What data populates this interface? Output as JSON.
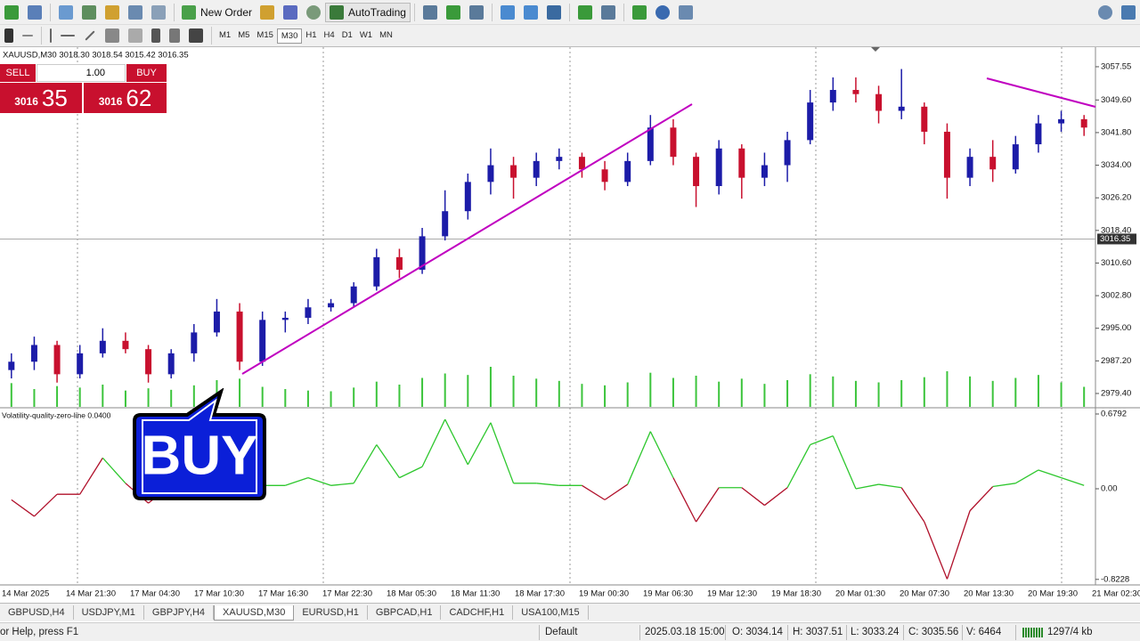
{
  "toolbar": {
    "new_order": "New Order",
    "auto_trading": "AutoTrading",
    "timeframes": [
      "M1",
      "M5",
      "M15",
      "M30",
      "H1",
      "H4",
      "D1",
      "W1",
      "MN"
    ]
  },
  "chart_header": "XAUUSD,M30  3018.30 3018.54 3015.42 3016.35",
  "trade_panel": {
    "sell": "SELL",
    "buy": "BUY",
    "lot": "1.00",
    "sell_big": "3016",
    "sell_small": "35",
    "buy_big": "3016",
    "buy_small": "62"
  },
  "overlay_text": "BUY",
  "chart_data": [
    {
      "type": "candlestick",
      "up_color": "#1c1ca8",
      "down_color": "#c8102e",
      "volume_color": "#3cc43c",
      "grid": false,
      "ylim": [
        2976.2,
        3061.8
      ],
      "yticks": [
        3057.55,
        {
          "value": 3049.6,
          "label": "3049.60"
        },
        {
          "value": 3041.8,
          "label": "3041.80"
        },
        {
          "value": 3034,
          "label": "3034.00"
        },
        {
          "value": 3026.2,
          "label": "3026.20"
        },
        {
          "value": 3018.4,
          "label": "3018.40"
        },
        {
          "value": 3010.6,
          "label": "3010.60"
        },
        {
          "value": 3002.8,
          "label": "3002.80"
        },
        {
          "value": 2995,
          "label": "2995.00"
        },
        {
          "value": 2987.2,
          "label": "2987.20"
        },
        {
          "value": 2979.4,
          "label": "2979.40"
        }
      ],
      "current_price": 3016.35,
      "open": [
        2985,
        2987,
        2991,
        2984,
        2989,
        2992,
        2990,
        2984,
        2989,
        2994,
        2999,
        2987,
        2997,
        2997.5,
        3000,
        3001,
        3005,
        3012,
        3009,
        3017,
        3023,
        3030,
        3034,
        3031,
        3035,
        3036,
        3033,
        3030,
        3035,
        3043,
        3036,
        3029,
        3038,
        3031,
        3034,
        3040,
        3049,
        3052,
        3051,
        3047,
        3048,
        3042,
        3031,
        3036,
        3033,
        3039,
        3044,
        3045
      ],
      "high": [
        2989,
        2993,
        2992,
        2991,
        2995,
        2994,
        2991,
        2990,
        2996,
        3002,
        3001,
        2999,
        2999,
        3002,
        3002,
        3006,
        3014,
        3014,
        3019,
        3028,
        3032,
        3038,
        3036,
        3037,
        3038,
        3037,
        3035,
        3037,
        3046,
        3045,
        3037,
        3040,
        3039,
        3037,
        3042,
        3052,
        3055,
        3055,
        3053,
        3057,
        3049,
        3044,
        3038,
        3040,
        3041,
        3046,
        3047,
        3046
      ],
      "low": [
        2983,
        2985,
        2982,
        2983,
        2988,
        2989,
        2982,
        2983,
        2987,
        2993,
        2985,
        2986,
        2994,
        2996,
        2999,
        3000,
        3004,
        3007,
        3008,
        3016,
        3021,
        3027,
        3026,
        3029,
        3033,
        3031,
        3028,
        3029,
        3034,
        3034,
        3024,
        3027,
        3026,
        3029,
        3030,
        3039,
        3047,
        3049,
        3044,
        3045,
        3039,
        3026,
        3029,
        3030,
        3032,
        3037,
        3042,
        3041
      ],
      "close": [
        2987,
        2991,
        2984,
        2989,
        2992,
        2990,
        2984,
        2989,
        2994,
        2999,
        2987,
        2997,
        2997.5,
        3000,
        3001,
        3005,
        3012,
        3009,
        3017,
        3023,
        3030,
        3034,
        3031,
        3035,
        3036,
        3033,
        3030,
        3035,
        3043,
        3036,
        3029,
        3038,
        3031,
        3034,
        3040,
        3049,
        3052,
        3051,
        3047,
        3048,
        3042,
        3031,
        3036,
        3033,
        3039,
        3044,
        3045,
        3043
      ],
      "volume": [
        3200,
        2400,
        2800,
        2600,
        3000,
        2200,
        2500,
        2300,
        2900,
        3600,
        3800,
        2700,
        2400,
        2200,
        2100,
        2600,
        3400,
        3000,
        3900,
        4500,
        4300,
        5400,
        4200,
        3800,
        3500,
        3100,
        2900,
        3300,
        4600,
        3900,
        4200,
        3400,
        3800,
        3100,
        3600,
        4400,
        4100,
        3500,
        3300,
        3600,
        4000,
        4800,
        4100,
        3500,
        3900,
        4300,
        3300,
        2700
      ]
    },
    {
      "type": "line",
      "label": "Volatility-quality-zero-line 0.0400",
      "up_color": "#2ec72e",
      "down_color": "#b0102a",
      "ylim": [
        -0.873,
        0.7276
      ],
      "yticks": [
        0.6792,
        {
          "value": 0,
          "label": "0.00"
        },
        -0.8228
      ],
      "values": [
        -0.1,
        -0.25,
        -0.05,
        -0.05,
        0.28,
        0.05,
        -0.13,
        0.03,
        0.03,
        0.03,
        0.03,
        0.03,
        0.03,
        0.1,
        0.03,
        0.05,
        0.4,
        0.1,
        0.2,
        0.63,
        0.22,
        0.6,
        0.05,
        0.05,
        0.03,
        0.03,
        -0.1,
        0.04,
        0.52,
        0.1,
        -0.3,
        0.01,
        0.01,
        -0.15,
        0.01,
        0.4,
        0.48,
        0.0,
        0.04,
        0.01,
        -0.3,
        -0.82,
        -0.2,
        0.02,
        0.05,
        0.17,
        0.1,
        0.03
      ]
    }
  ],
  "time_axis": [
    "14 Mar 2025",
    "14 Mar 21:30",
    "17 Mar 04:30",
    "17 Mar 10:30",
    "17 Mar 16:30",
    "17 Mar 22:30",
    "18 Mar 05:30",
    "18 Mar 11:30",
    "18 Mar 17:30",
    "19 Mar 00:30",
    "19 Mar 06:30",
    "19 Mar 12:30",
    "19 Mar 18:30",
    "20 Mar 01:30",
    "20 Mar 07:30",
    "20 Mar 13:30",
    "20 Mar 19:30",
    "21 Mar 02:30"
  ],
  "tabs": [
    "GBPUSD,H4",
    "USDJPY,M1",
    "GBPJPY,H4",
    "XAUUSD,M30",
    "EURUSD,H1",
    "GBPCAD,H1",
    "CADCHF,H1",
    "USA100,M15"
  ],
  "status_bar": {
    "help": "or Help, press F1",
    "profile": "Default",
    "time": "2025.03.18 15:00",
    "open": "O: 3034.14",
    "high": "H: 3037.51",
    "low": "L: 3033.24",
    "close": "C: 3035.56",
    "volume": "V: 6464",
    "traffic": "1297/4 kb"
  }
}
